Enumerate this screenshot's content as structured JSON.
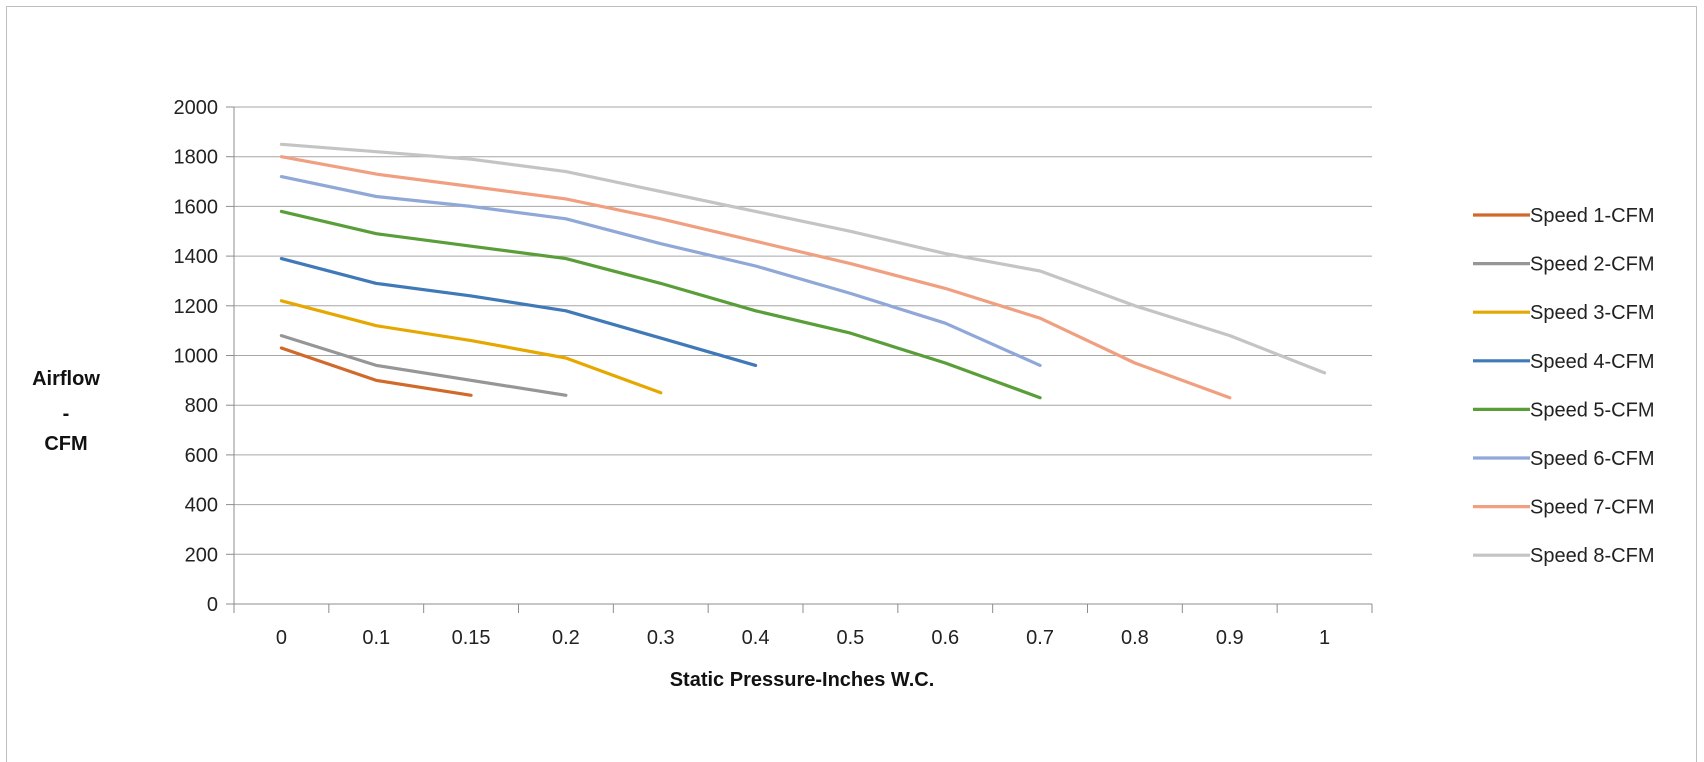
{
  "chart_data": {
    "type": "line",
    "title": "",
    "xlabel": "Static Pressure-Inches W.C.",
    "ylabel_lines": [
      "Airflow",
      "-",
      "CFM"
    ],
    "categories": [
      "0",
      "0.1",
      "0.15",
      "0.2",
      "0.3",
      "0.4",
      "0.5",
      "0.6",
      "0.7",
      "0.8",
      "0.9",
      "1"
    ],
    "ylim": [
      0,
      2000
    ],
    "yticks": [
      "0",
      "200",
      "400",
      "600",
      "800",
      "1000",
      "1200",
      "1400",
      "1600",
      "1800",
      "2000"
    ],
    "grid": true,
    "legend_position": "right",
    "series": [
      {
        "name": "Speed 1-CFM",
        "color": "#D0692A",
        "values": [
          1030,
          900,
          840,
          null,
          null,
          null,
          null,
          null,
          null,
          null,
          null,
          null
        ]
      },
      {
        "name": "Speed 2-CFM",
        "color": "#969696",
        "values": [
          1080,
          960,
          null,
          840,
          null,
          null,
          null,
          null,
          null,
          null,
          null,
          null
        ]
      },
      {
        "name": "Speed 3-CFM",
        "color": "#E6A800",
        "values": [
          1220,
          1120,
          1060,
          990,
          850,
          null,
          null,
          null,
          null,
          null,
          null,
          null
        ]
      },
      {
        "name": "Speed 4-CFM",
        "color": "#3F79B8",
        "values": [
          1390,
          1290,
          1240,
          1180,
          1070,
          960,
          null,
          null,
          null,
          null,
          null,
          null
        ]
      },
      {
        "name": "Speed 5-CFM",
        "color": "#5A9E3A",
        "values": [
          1580,
          1490,
          1440,
          1390,
          1290,
          1180,
          1090,
          970,
          830,
          null,
          null,
          null
        ]
      },
      {
        "name": "Speed 6-CFM",
        "color": "#8FA8D8",
        "values": [
          1720,
          1640,
          1600,
          1550,
          1450,
          1360,
          1250,
          1130,
          960,
          null,
          null,
          null
        ]
      },
      {
        "name": "Speed 7-CFM",
        "color": "#F0A080",
        "values": [
          1800,
          1730,
          1680,
          1630,
          1550,
          1460,
          1370,
          1270,
          1150,
          970,
          830,
          null
        ]
      },
      {
        "name": "Speed 8-CFM",
        "color": "#C4C4C4",
        "values": [
          1850,
          1820,
          1790,
          1740,
          1660,
          1580,
          1500,
          1410,
          1340,
          1200,
          1080,
          930
        ]
      }
    ]
  }
}
